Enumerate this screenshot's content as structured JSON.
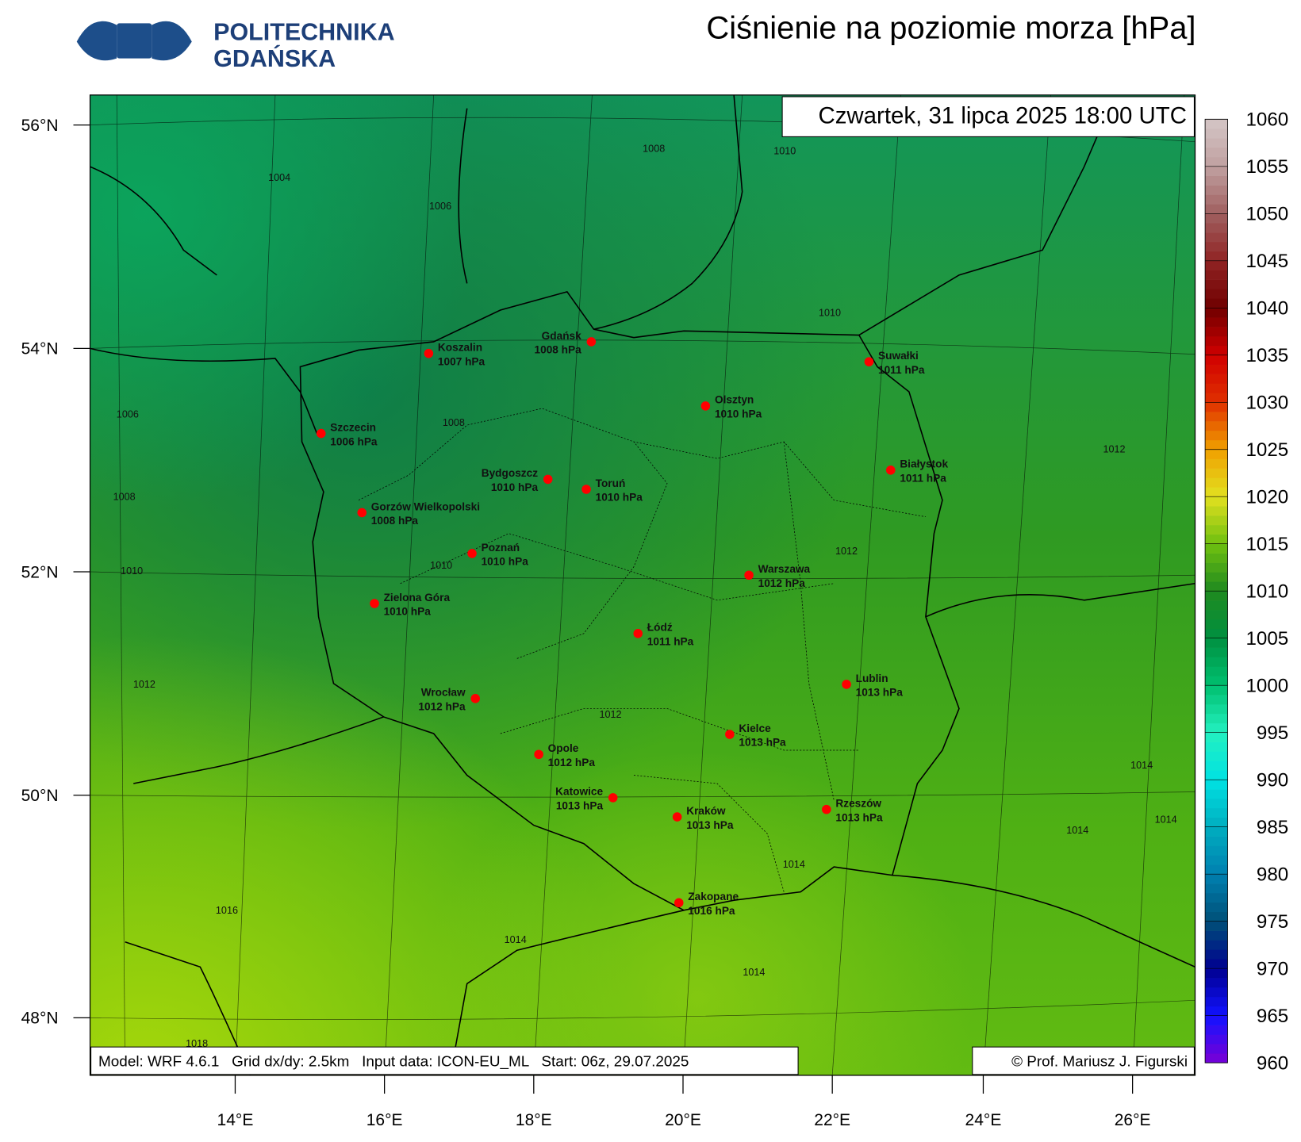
{
  "header": {
    "logo_line1": "POLITECHNIKA",
    "logo_line2": "GDAŃSKA",
    "title": "Ciśnienie na poziomie morza [hPa]"
  },
  "map": {
    "valid_time": "Czwartek, 31 lipca 2025 18:00 UTC",
    "cities": [
      {
        "name": "Koszalin",
        "label": "1007 hPa"
      },
      {
        "name": "Gdańsk",
        "label": "1008 hPa"
      },
      {
        "name": "Szczecin",
        "label": "1006 hPa"
      },
      {
        "name": "Suwałki",
        "label": "1011 hPa"
      },
      {
        "name": "Olsztyn",
        "label": "1010 hPa"
      },
      {
        "name": "Białystok",
        "label": "1011 hPa"
      },
      {
        "name": "Bydgoszcz",
        "label": "1010 hPa"
      },
      {
        "name": "Toruń",
        "label": "1010 hPa"
      },
      {
        "name": "Gorzów Wielkopolski",
        "label": "1008 hPa"
      },
      {
        "name": "Poznań",
        "label": "1010 hPa"
      },
      {
        "name": "Warszawa",
        "label": "1012 hPa"
      },
      {
        "name": "Zielona Góra",
        "label": "1010 hPa"
      },
      {
        "name": "Łódź",
        "label": "1011 hPa"
      },
      {
        "name": "Lublin",
        "label": "1013 hPa"
      },
      {
        "name": "Wrocław",
        "label": "1012 hPa"
      },
      {
        "name": "Kielce",
        "label": "1013 hPa"
      },
      {
        "name": "Opole",
        "label": "1012 hPa"
      },
      {
        "name": "Katowice",
        "label": "1013 hPa"
      },
      {
        "name": "Kraków",
        "label": "1013 hPa"
      },
      {
        "name": "Rzeszów",
        "label": "1013 hPa"
      },
      {
        "name": "Zakopane",
        "label": "1016 hPa"
      }
    ],
    "contour_labels": [
      "1004",
      "1006",
      "1008",
      "1010",
      "1010",
      "1006",
      "1008",
      "1012",
      "1008",
      "1012",
      "1010",
      "1010",
      "1012",
      "1012",
      "1014",
      "1014",
      "1014",
      "1014",
      "1016",
      "1014",
      "1014",
      "1018"
    ],
    "lat_labels": [
      "56°N",
      "54°N",
      "52°N",
      "50°N",
      "48°N"
    ],
    "lon_labels": [
      "14°E",
      "16°E",
      "18°E",
      "20°E",
      "22°E",
      "24°E",
      "26°E"
    ],
    "model_info": "Model: WRF 4.6.1   Grid dx/dy: 2.5km   Input data: ICON-EU_ML   Start: 06z, 29.07.2025",
    "copyright": "© Prof. Mariusz J. Figurski"
  },
  "colorbar": {
    "ticks": [
      960,
      965,
      970,
      975,
      980,
      985,
      990,
      995,
      1000,
      1005,
      1010,
      1015,
      1020,
      1025,
      1030,
      1035,
      1040,
      1045,
      1050,
      1055,
      1060
    ]
  }
}
